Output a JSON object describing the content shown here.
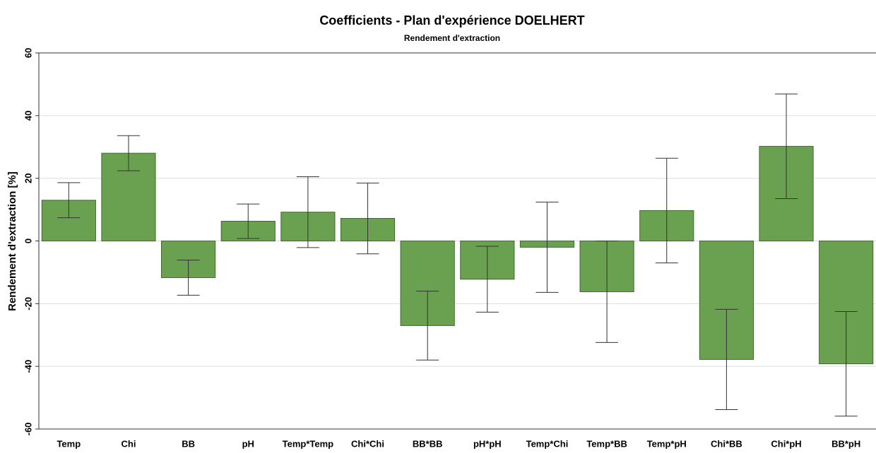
{
  "chart_data": {
    "type": "bar",
    "title": "Coefficients - Plan d'expérience DOELHERT",
    "subtitle": "Rendement d'extraction",
    "y_label": "Rendement d'extraction [%]",
    "categories": [
      "Temp",
      "Chi",
      "BB",
      "pH",
      "Temp*Temp",
      "Chi*Chi",
      "BB*BB",
      "pH*pH",
      "Temp*Chi",
      "Temp*BB",
      "Temp*pH",
      "Chi*BB",
      "Chi*pH",
      "BB*pH"
    ],
    "values": [
      13,
      28,
      -11.7,
      6.3,
      9.2,
      7.2,
      -27,
      -12.2,
      -2,
      -16.2,
      9.7,
      -37.8,
      30.2,
      -39.2
    ],
    "errors": [
      5.6,
      5.6,
      5.6,
      5.5,
      11.3,
      11.3,
      11,
      10.5,
      14.4,
      16.2,
      16.7,
      16,
      16.7,
      16.7
    ],
    "color": "#6aa150",
    "ylim": [
      -60,
      60
    ],
    "yticks": [
      -60,
      -40,
      -20,
      0,
      20,
      40,
      60
    ],
    "grid": true
  }
}
